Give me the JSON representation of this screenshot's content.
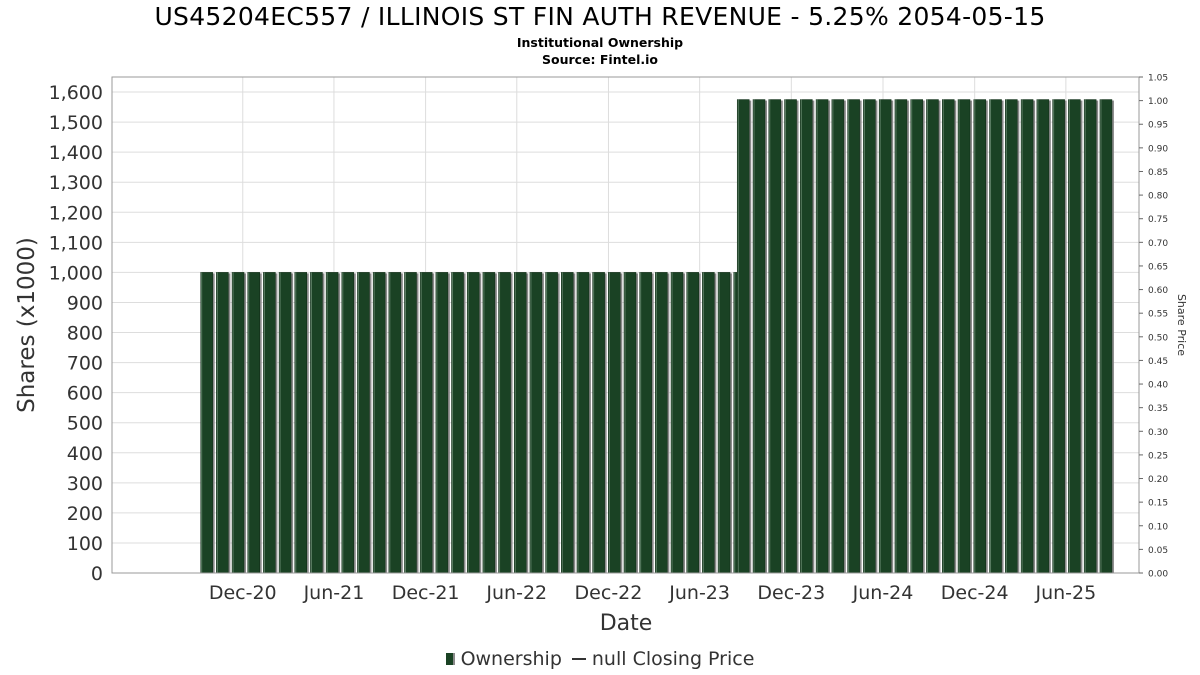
{
  "header": {
    "title": "US45204EC557 / ILLINOIS ST FIN AUTH REVENUE - 5.25% 2054-05-15",
    "subtitle": "Institutional Ownership",
    "source": "Source: Fintel.io"
  },
  "legend": {
    "ownership_label": "Ownership",
    "price_label": "null Closing Price"
  },
  "colors": {
    "bar": "#1a4224",
    "bar_shadow": "#8a8a8a",
    "grid": "#dddddd",
    "plot_border": "#999999"
  },
  "chart_data": {
    "type": "bar",
    "xlabel": "Date",
    "ylabel": "Shares (x1000)",
    "y2label": "Share Price",
    "ylim": [
      0,
      1650
    ],
    "y2lim": [
      0,
      1.05
    ],
    "grid": true,
    "legend_position": "bottom",
    "y_ticks": [
      "0",
      "100",
      "200",
      "300",
      "400",
      "500",
      "600",
      "700",
      "800",
      "900",
      "1,000",
      "1,100",
      "1,200",
      "1,300",
      "1,400",
      "1,500",
      "1,600"
    ],
    "y_tick_values": [
      0,
      100,
      200,
      300,
      400,
      500,
      600,
      700,
      800,
      900,
      1000,
      1100,
      1200,
      1300,
      1400,
      1500,
      1600
    ],
    "y2_ticks": [
      "0.00",
      "0.05",
      "0.10",
      "0.15",
      "0.20",
      "0.25",
      "0.30",
      "0.35",
      "0.40",
      "0.45",
      "0.50",
      "0.55",
      "0.60",
      "0.65",
      "0.70",
      "0.75",
      "0.80",
      "0.85",
      "0.90",
      "0.95",
      "1.00",
      "1.05"
    ],
    "y2_tick_values": [
      0,
      0.05,
      0.1,
      0.15,
      0.2,
      0.25,
      0.3,
      0.35,
      0.4,
      0.45,
      0.5,
      0.55,
      0.6,
      0.65,
      0.7,
      0.75,
      0.8,
      0.85,
      0.9,
      0.95,
      1.0,
      1.05
    ],
    "x_ticks": [
      "Dec-20",
      "Jun-21",
      "Dec-21",
      "Jun-22",
      "Dec-22",
      "Jun-23",
      "Dec-23",
      "Jun-24",
      "Dec-24",
      "Jun-25"
    ],
    "x_tick_dates": [
      "2020-12-01",
      "2021-06-01",
      "2021-12-01",
      "2022-06-01",
      "2022-12-01",
      "2023-06-01",
      "2023-12-01",
      "2024-06-01",
      "2024-12-01",
      "2025-06-01"
    ],
    "x_range": [
      "2020-03-15",
      "2025-10-25"
    ],
    "series": [
      {
        "name": "Ownership",
        "segments": [
          {
            "start": "2020-09-20",
            "end": "2023-08-20",
            "value": 1000
          },
          {
            "start": "2023-08-27",
            "end": "2025-08-20",
            "value": 1575
          }
        ]
      }
    ]
  }
}
